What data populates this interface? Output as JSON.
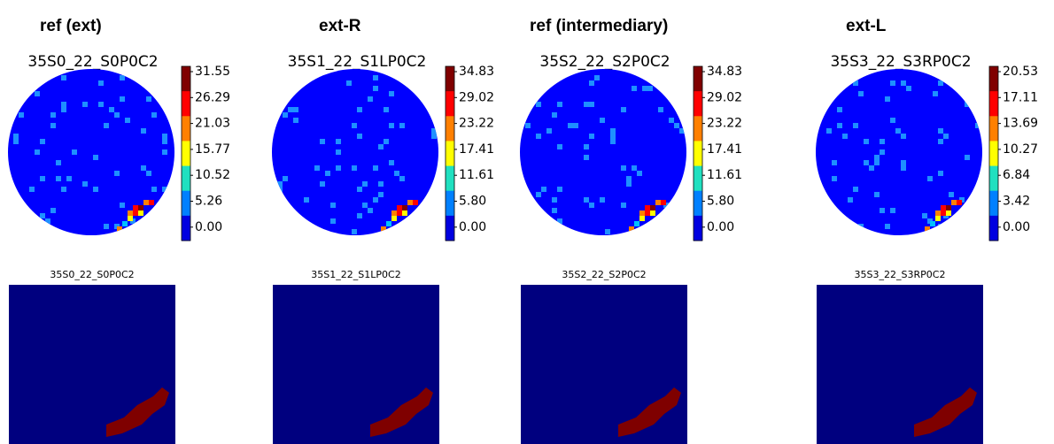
{
  "panels": [
    {
      "header": "ref (ext)",
      "title": "35S0_22_S0P0C2",
      "colorbar_ticks": [
        "31.55",
        "26.29",
        "21.03",
        "15.77",
        "10.52",
        "5.26",
        "0.00"
      ],
      "mask_title": "35S0_22_S0P0C2"
    },
    {
      "header": "ext-R",
      "title": "35S1_22_S1LP0C2",
      "colorbar_ticks": [
        "34.83",
        "29.02",
        "23.22",
        "17.41",
        "11.61",
        "5.80",
        "0.00"
      ],
      "mask_title": "35S1_22_S1LP0C2"
    },
    {
      "header": "ref (intermediary)",
      "title": "35S2_22_S2P0C2",
      "colorbar_ticks": [
        "34.83",
        "29.02",
        "23.22",
        "17.41",
        "11.61",
        "5.80",
        "0.00"
      ],
      "mask_title": "35S2_22_S2P0C2"
    },
    {
      "header": "ext-L",
      "title": "35S3_22_S3RP0C2",
      "colorbar_ticks": [
        "20.53",
        "17.11",
        "13.69",
        "10.27",
        "6.84",
        "3.42",
        "0.00"
      ],
      "mask_title": "35S3_22_S3RP0C2"
    }
  ]
}
